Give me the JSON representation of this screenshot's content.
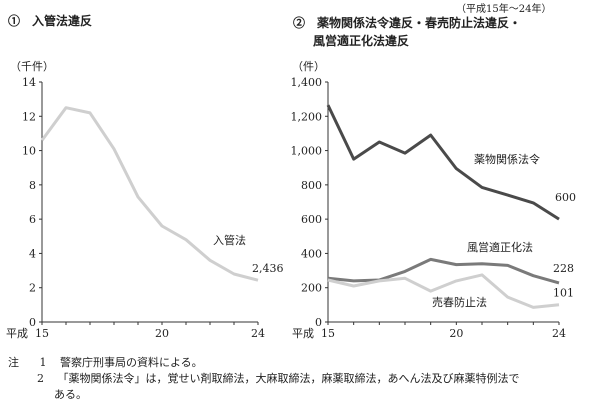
{
  "period": "（平成15年～24年）",
  "panel1": {
    "title": "①　入管法違反",
    "unit": "（千件）",
    "era": "平成",
    "chart_data": {
      "type": "line",
      "x": [
        15,
        16,
        17,
        18,
        19,
        20,
        21,
        22,
        23,
        24
      ],
      "xticks": [
        15,
        20,
        24
      ],
      "ylim": [
        0,
        14
      ],
      "yticks": [
        0,
        2,
        4,
        6,
        8,
        10,
        12,
        14
      ],
      "series": [
        {
          "name": "入管法",
          "values": [
            10.6,
            12.5,
            12.2,
            10.1,
            7.3,
            5.6,
            4.8,
            3.6,
            2.8,
            2.436
          ],
          "end_label": "2,436",
          "color": "#cfcfcf"
        }
      ]
    }
  },
  "panel2": {
    "title_line1": "②　薬物関係法令違反・春売防止法違反・",
    "title_line2": "風営適正化法違反",
    "unit": "（件）",
    "era": "平成",
    "chart_data": {
      "type": "line",
      "x": [
        15,
        16,
        17,
        18,
        19,
        20,
        21,
        22,
        23,
        24
      ],
      "xticks": [
        15,
        20,
        24
      ],
      "ylim": [
        0,
        1400
      ],
      "yticks": [
        0,
        200,
        400,
        600,
        800,
        1000,
        1200,
        1400
      ],
      "ytick_labels": [
        "0",
        "200",
        "400",
        "600",
        "800",
        "1,000",
        "1,200",
        "1,400"
      ],
      "series": [
        {
          "name": "薬物関係法令",
          "values": [
            1265,
            950,
            1050,
            985,
            1090,
            895,
            785,
            740,
            695,
            600
          ],
          "end_label": "600",
          "color": "#4a4a4a"
        },
        {
          "name": "風営適正化法",
          "values": [
            255,
            240,
            245,
            295,
            365,
            335,
            340,
            330,
            270,
            228
          ],
          "end_label": "228",
          "color": "#7a7a7a"
        },
        {
          "name": "売春防止法",
          "values": [
            245,
            210,
            240,
            255,
            180,
            240,
            275,
            145,
            85,
            101
          ],
          "end_label": "101",
          "color": "#cfcfcf"
        }
      ]
    }
  },
  "notes": {
    "prefix": "注",
    "n1_num": "1",
    "n1_text": "警察庁刑事局の資料による。",
    "n2_num": "2",
    "n2_text": "「薬物関係法令」は，覚せい剤取締法，大麻取締法，麻薬取締法，あへん法及び麻薬特例法で",
    "n2_text_cont": "ある。"
  }
}
